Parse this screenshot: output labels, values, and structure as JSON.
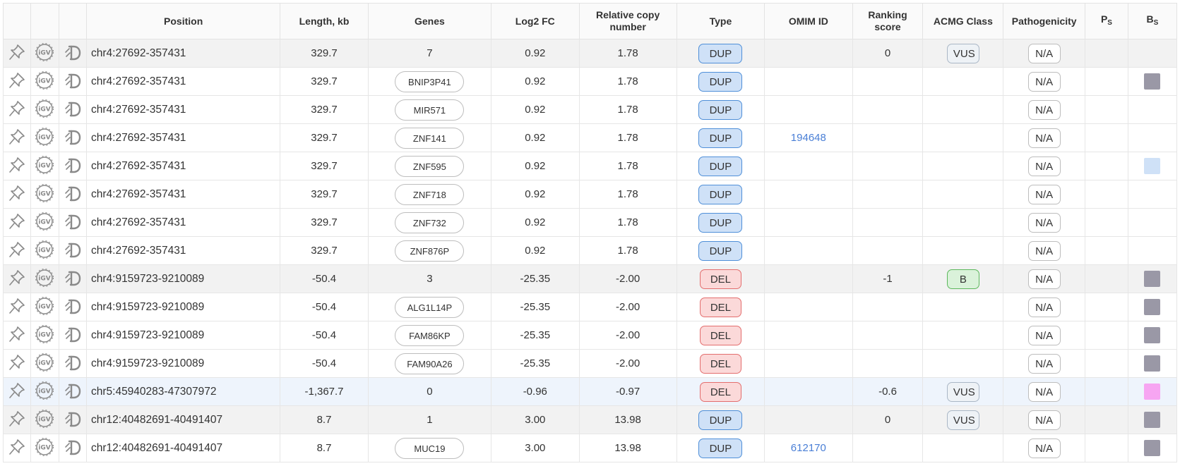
{
  "headers": {
    "position": "Position",
    "length": "Length, kb",
    "genes": "Genes",
    "log2fc": "Log2 FC",
    "rcn": "Relative copy number",
    "type": "Type",
    "omim": "OMIM ID",
    "ranking": "Ranking score",
    "acmg": "ACMG Class",
    "pathogenicity": "Pathogenicity",
    "ps_main": "P",
    "ps_sub": "S",
    "bs_main": "B",
    "bs_sub": "S"
  },
  "colors": {
    "dup_fill": "#cfe1f7",
    "del_fill": "#fbd9d9",
    "bs_gray": "#9a98a6",
    "bs_lightblue": "#cfe1f7",
    "bs_pink": "#f7a5f2",
    "omim_link": "#4a7fd6"
  },
  "rows": [
    {
      "kind": "summary",
      "position": "chr4:27692-357431",
      "length": "329.7",
      "genes": "7",
      "gene_is_pill": false,
      "log2fc": "0.92",
      "rcn": "1.78",
      "type": "DUP",
      "omim": "",
      "ranking": "0",
      "acmg": "VUS",
      "pathogenicity": "N/A",
      "bs": ""
    },
    {
      "kind": "gene",
      "position": "chr4:27692-357431",
      "length": "329.7",
      "genes": "BNIP3P41",
      "gene_is_pill": true,
      "log2fc": "0.92",
      "rcn": "1.78",
      "type": "DUP",
      "omim": "",
      "ranking": "",
      "acmg": "",
      "pathogenicity": "N/A",
      "bs": "gray"
    },
    {
      "kind": "gene",
      "position": "chr4:27692-357431",
      "length": "329.7",
      "genes": "MIR571",
      "gene_is_pill": true,
      "log2fc": "0.92",
      "rcn": "1.78",
      "type": "DUP",
      "omim": "",
      "ranking": "",
      "acmg": "",
      "pathogenicity": "N/A",
      "bs": ""
    },
    {
      "kind": "gene",
      "position": "chr4:27692-357431",
      "length": "329.7",
      "genes": "ZNF141",
      "gene_is_pill": true,
      "log2fc": "0.92",
      "rcn": "1.78",
      "type": "DUP",
      "omim": "194648",
      "ranking": "",
      "acmg": "",
      "pathogenicity": "N/A",
      "bs": ""
    },
    {
      "kind": "gene",
      "position": "chr4:27692-357431",
      "length": "329.7",
      "genes": "ZNF595",
      "gene_is_pill": true,
      "log2fc": "0.92",
      "rcn": "1.78",
      "type": "DUP",
      "omim": "",
      "ranking": "",
      "acmg": "",
      "pathogenicity": "N/A",
      "bs": "lightblue"
    },
    {
      "kind": "gene",
      "position": "chr4:27692-357431",
      "length": "329.7",
      "genes": "ZNF718",
      "gene_is_pill": true,
      "log2fc": "0.92",
      "rcn": "1.78",
      "type": "DUP",
      "omim": "",
      "ranking": "",
      "acmg": "",
      "pathogenicity": "N/A",
      "bs": ""
    },
    {
      "kind": "gene",
      "position": "chr4:27692-357431",
      "length": "329.7",
      "genes": "ZNF732",
      "gene_is_pill": true,
      "log2fc": "0.92",
      "rcn": "1.78",
      "type": "DUP",
      "omim": "",
      "ranking": "",
      "acmg": "",
      "pathogenicity": "N/A",
      "bs": ""
    },
    {
      "kind": "gene",
      "position": "chr4:27692-357431",
      "length": "329.7",
      "genes": "ZNF876P",
      "gene_is_pill": true,
      "log2fc": "0.92",
      "rcn": "1.78",
      "type": "DUP",
      "omim": "",
      "ranking": "",
      "acmg": "",
      "pathogenicity": "N/A",
      "bs": ""
    },
    {
      "kind": "summary",
      "position": "chr4:9159723-9210089",
      "length": "-50.4",
      "genes": "3",
      "gene_is_pill": false,
      "log2fc": "-25.35",
      "rcn": "-2.00",
      "type": "DEL",
      "omim": "",
      "ranking": "-1",
      "acmg": "B",
      "pathogenicity": "N/A",
      "bs": "gray"
    },
    {
      "kind": "gene",
      "position": "chr4:9159723-9210089",
      "length": "-50.4",
      "genes": "ALG1L14P",
      "gene_is_pill": true,
      "log2fc": "-25.35",
      "rcn": "-2.00",
      "type": "DEL",
      "omim": "",
      "ranking": "",
      "acmg": "",
      "pathogenicity": "N/A",
      "bs": "gray"
    },
    {
      "kind": "gene",
      "position": "chr4:9159723-9210089",
      "length": "-50.4",
      "genes": "FAM86KP",
      "gene_is_pill": true,
      "log2fc": "-25.35",
      "rcn": "-2.00",
      "type": "DEL",
      "omim": "",
      "ranking": "",
      "acmg": "",
      "pathogenicity": "N/A",
      "bs": "gray"
    },
    {
      "kind": "gene",
      "position": "chr4:9159723-9210089",
      "length": "-50.4",
      "genes": "FAM90A26",
      "gene_is_pill": true,
      "log2fc": "-25.35",
      "rcn": "-2.00",
      "type": "DEL",
      "omim": "",
      "ranking": "",
      "acmg": "",
      "pathogenicity": "N/A",
      "bs": "gray"
    },
    {
      "kind": "highlight",
      "position": "chr5:45940283-47307972",
      "length": "-1,367.7",
      "genes": "0",
      "gene_is_pill": false,
      "log2fc": "-0.96",
      "rcn": "-0.97",
      "type": "DEL",
      "omim": "",
      "ranking": "-0.6",
      "acmg": "VUS",
      "pathogenicity": "N/A",
      "bs": "pink"
    },
    {
      "kind": "summary",
      "position": "chr12:40482691-40491407",
      "length": "8.7",
      "genes": "1",
      "gene_is_pill": false,
      "log2fc": "3.00",
      "rcn": "13.98",
      "type": "DUP",
      "omim": "",
      "ranking": "0",
      "acmg": "VUS",
      "pathogenicity": "N/A",
      "bs": "gray"
    },
    {
      "kind": "gene",
      "position": "chr12:40482691-40491407",
      "length": "8.7",
      "genes": "MUC19",
      "gene_is_pill": true,
      "log2fc": "3.00",
      "rcn": "13.98",
      "type": "DUP",
      "omim": "612170",
      "ranking": "",
      "acmg": "",
      "pathogenicity": "N/A",
      "bs": "gray"
    }
  ]
}
